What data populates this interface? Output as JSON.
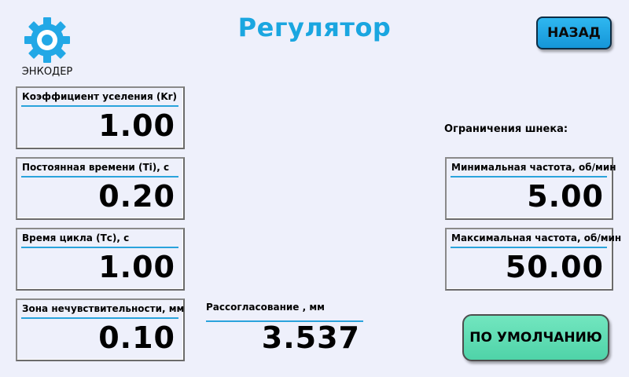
{
  "header": {
    "title": "Регулятор",
    "back_label": "НАЗАД",
    "encoder_label": "ЭНКОДЕР",
    "encoder_icon": "gear-icon",
    "accent_color": "#1aa6e0"
  },
  "params": [
    {
      "label": "Коэффициент уселения (Kr)",
      "value": "1.00"
    },
    {
      "label": "Постоянная времени (Ti), с",
      "value": "0.20"
    },
    {
      "label": "Время цикла (Тс), с",
      "value": "1.00"
    },
    {
      "label": "Зона нечувствительности, мм",
      "value": "0.10"
    }
  ],
  "mismatch": {
    "label": "Рассогласование , мм",
    "value": "3.537"
  },
  "constraints": {
    "title": "Ограничения шнека:",
    "min": {
      "label": "Минимальная частота, об/мин",
      "value": "5.00"
    },
    "max": {
      "label": "Максимальная частота, об/мин",
      "value": "50.00"
    }
  },
  "default_label": "ПО УМОЛЧАНИЮ",
  "default_color": "#5fdcb2"
}
